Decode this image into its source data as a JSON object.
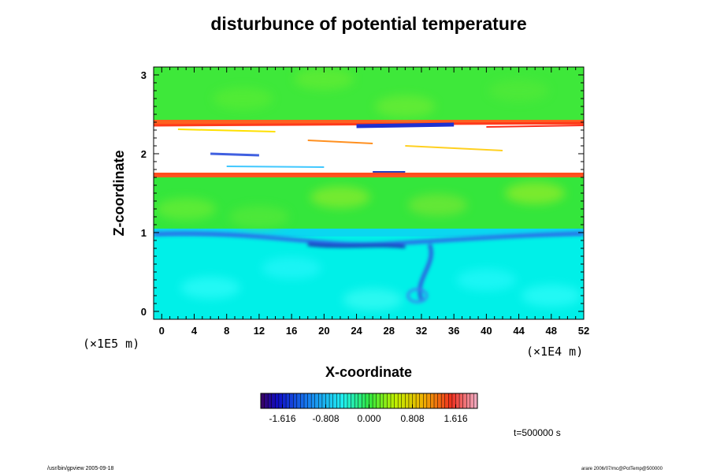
{
  "chart_data": {
    "type": "heatmap",
    "title": "disturbunce of potential temperature",
    "xlabel": "X-coordinate",
    "ylabel": "Z-coordinate",
    "x_unit": "(×1E4 m)",
    "y_unit": "(×1E5 m)",
    "x_ticks": [
      "0",
      "4",
      "8",
      "12",
      "16",
      "20",
      "24",
      "28",
      "32",
      "36",
      "40",
      "44",
      "48",
      "52"
    ],
    "y_ticks": [
      "0",
      "1",
      "2",
      "3"
    ],
    "xlim": [
      -1,
      52
    ],
    "ylim": [
      -0.1,
      3.1
    ],
    "colorbar": {
      "ticks": [
        "-1.616",
        "-0.808",
        "0.000",
        "0.808",
        "1.616"
      ],
      "tick_values": [
        -1.616,
        -0.808,
        0.0,
        0.808,
        1.616
      ],
      "range": [
        -2.02,
        2.02
      ]
    },
    "layers": [
      {
        "z": [
          -0.1,
          0.95
        ],
        "value": -0.35,
        "color": "#00f0e8"
      },
      {
        "z": [
          0.95,
          1.05
        ],
        "value": -0.6,
        "color": "#0ad7f0"
      },
      {
        "z": [
          1.05,
          1.7
        ],
        "value": 0.25,
        "color": "#34e63c"
      },
      {
        "z": [
          1.7,
          1.76
        ],
        "value": 1.6,
        "color": "#ff5a1e"
      },
      {
        "z": [
          1.76,
          2.37
        ],
        "value": null,
        "color": "#ffffff"
      },
      {
        "z": [
          2.37,
          2.43
        ],
        "value": 1.4,
        "color": "#ff6020"
      },
      {
        "z": [
          2.43,
          3.1
        ],
        "value": 0.2,
        "color": "#3ee83a"
      }
    ],
    "annotation_time": "t=500000 s"
  },
  "footer": {
    "left": "/usr/bin/gpview 2005-09-18",
    "right": "arare 2006/07/mc@PotTemp@500000"
  },
  "colors": {
    "green": "#3ee83a",
    "cyan": "#00f0e8",
    "yellow": "#d8f000",
    "orange": "#ff7020",
    "red": "#ff2020",
    "blue": "#1030d0",
    "white": "#ffffff"
  }
}
